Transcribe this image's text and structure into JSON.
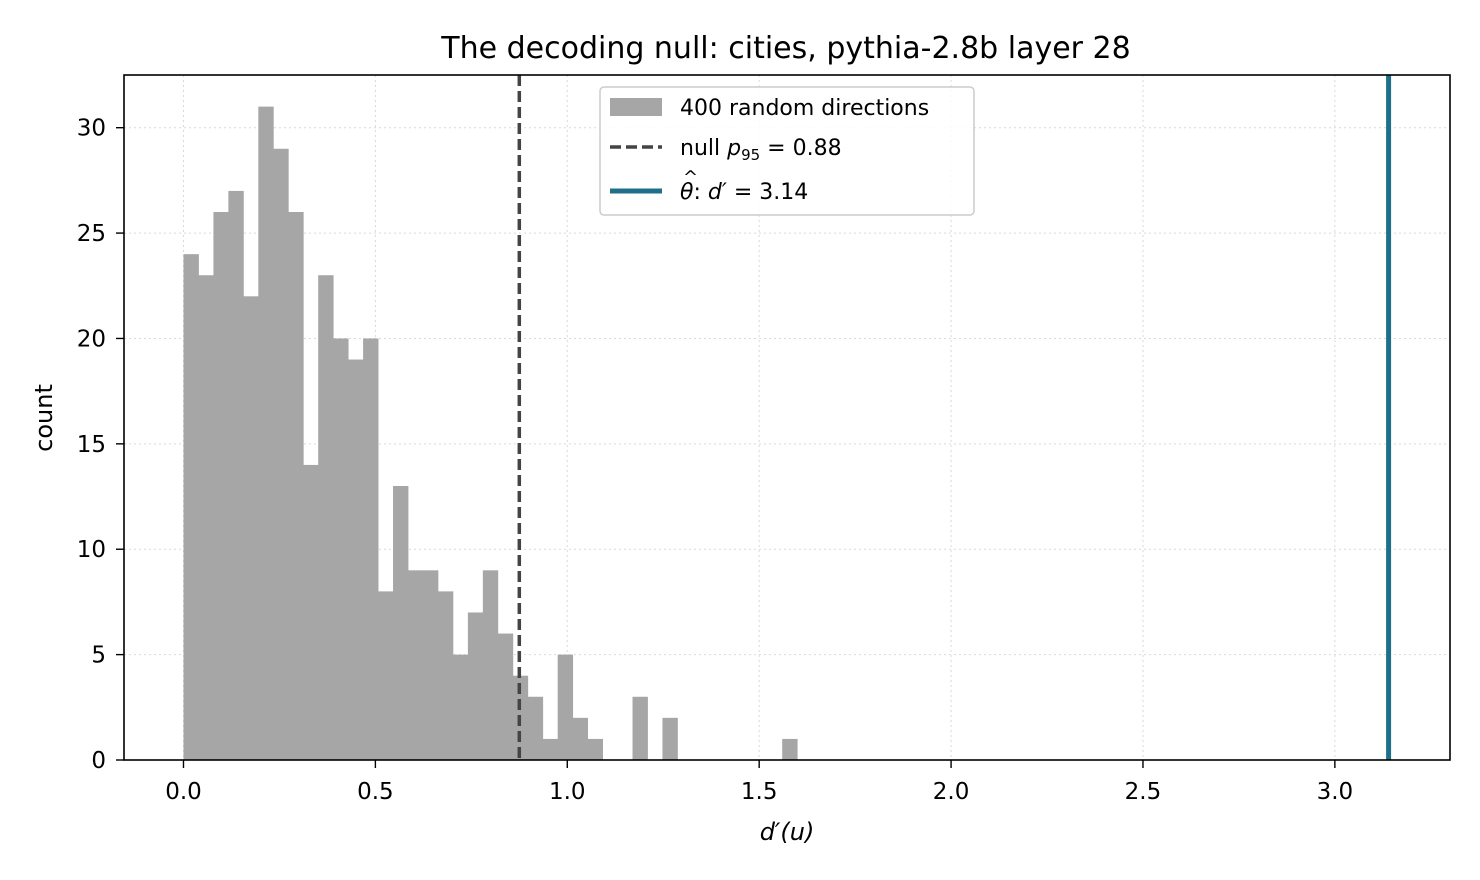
{
  "chart_data": {
    "type": "bar",
    "title": "The decoding null: cities, pythia-2.8b layer 28",
    "xlabel": "d′(u)",
    "ylabel": "count",
    "xlim": [
      -0.155,
      3.3
    ],
    "ylim": [
      0,
      32.5
    ],
    "x_ticks": [
      "0.0",
      "0.5",
      "1.0",
      "1.5",
      "2.0",
      "2.5",
      "3.0"
    ],
    "y_ticks": [
      "0",
      "5",
      "10",
      "15",
      "20",
      "25",
      "30"
    ],
    "grid": true,
    "legend_position": "top-center",
    "bin_width": 0.039,
    "bin_start": 0.0,
    "histogram": {
      "name": "400 random directions",
      "color": "#a6a6a6",
      "counts": [
        24,
        23,
        26,
        27,
        22,
        31,
        29,
        26,
        14,
        23,
        20,
        19,
        20,
        8,
        13,
        9,
        9,
        8,
        5,
        7,
        9,
        6,
        4,
        3,
        1,
        5,
        2,
        1,
        0,
        0,
        3,
        0,
        2,
        0,
        0,
        0,
        0,
        0,
        0,
        0,
        1
      ]
    },
    "null_line": {
      "label_prefix": "null ",
      "label_sub": "95",
      "label_value": " = 0.88",
      "x": 0.875,
      "color": "#444444"
    },
    "theta_line": {
      "label_prefix": ": ",
      "label_value": " = 3.14",
      "x": 3.14,
      "color": "#1f6f8b"
    }
  }
}
